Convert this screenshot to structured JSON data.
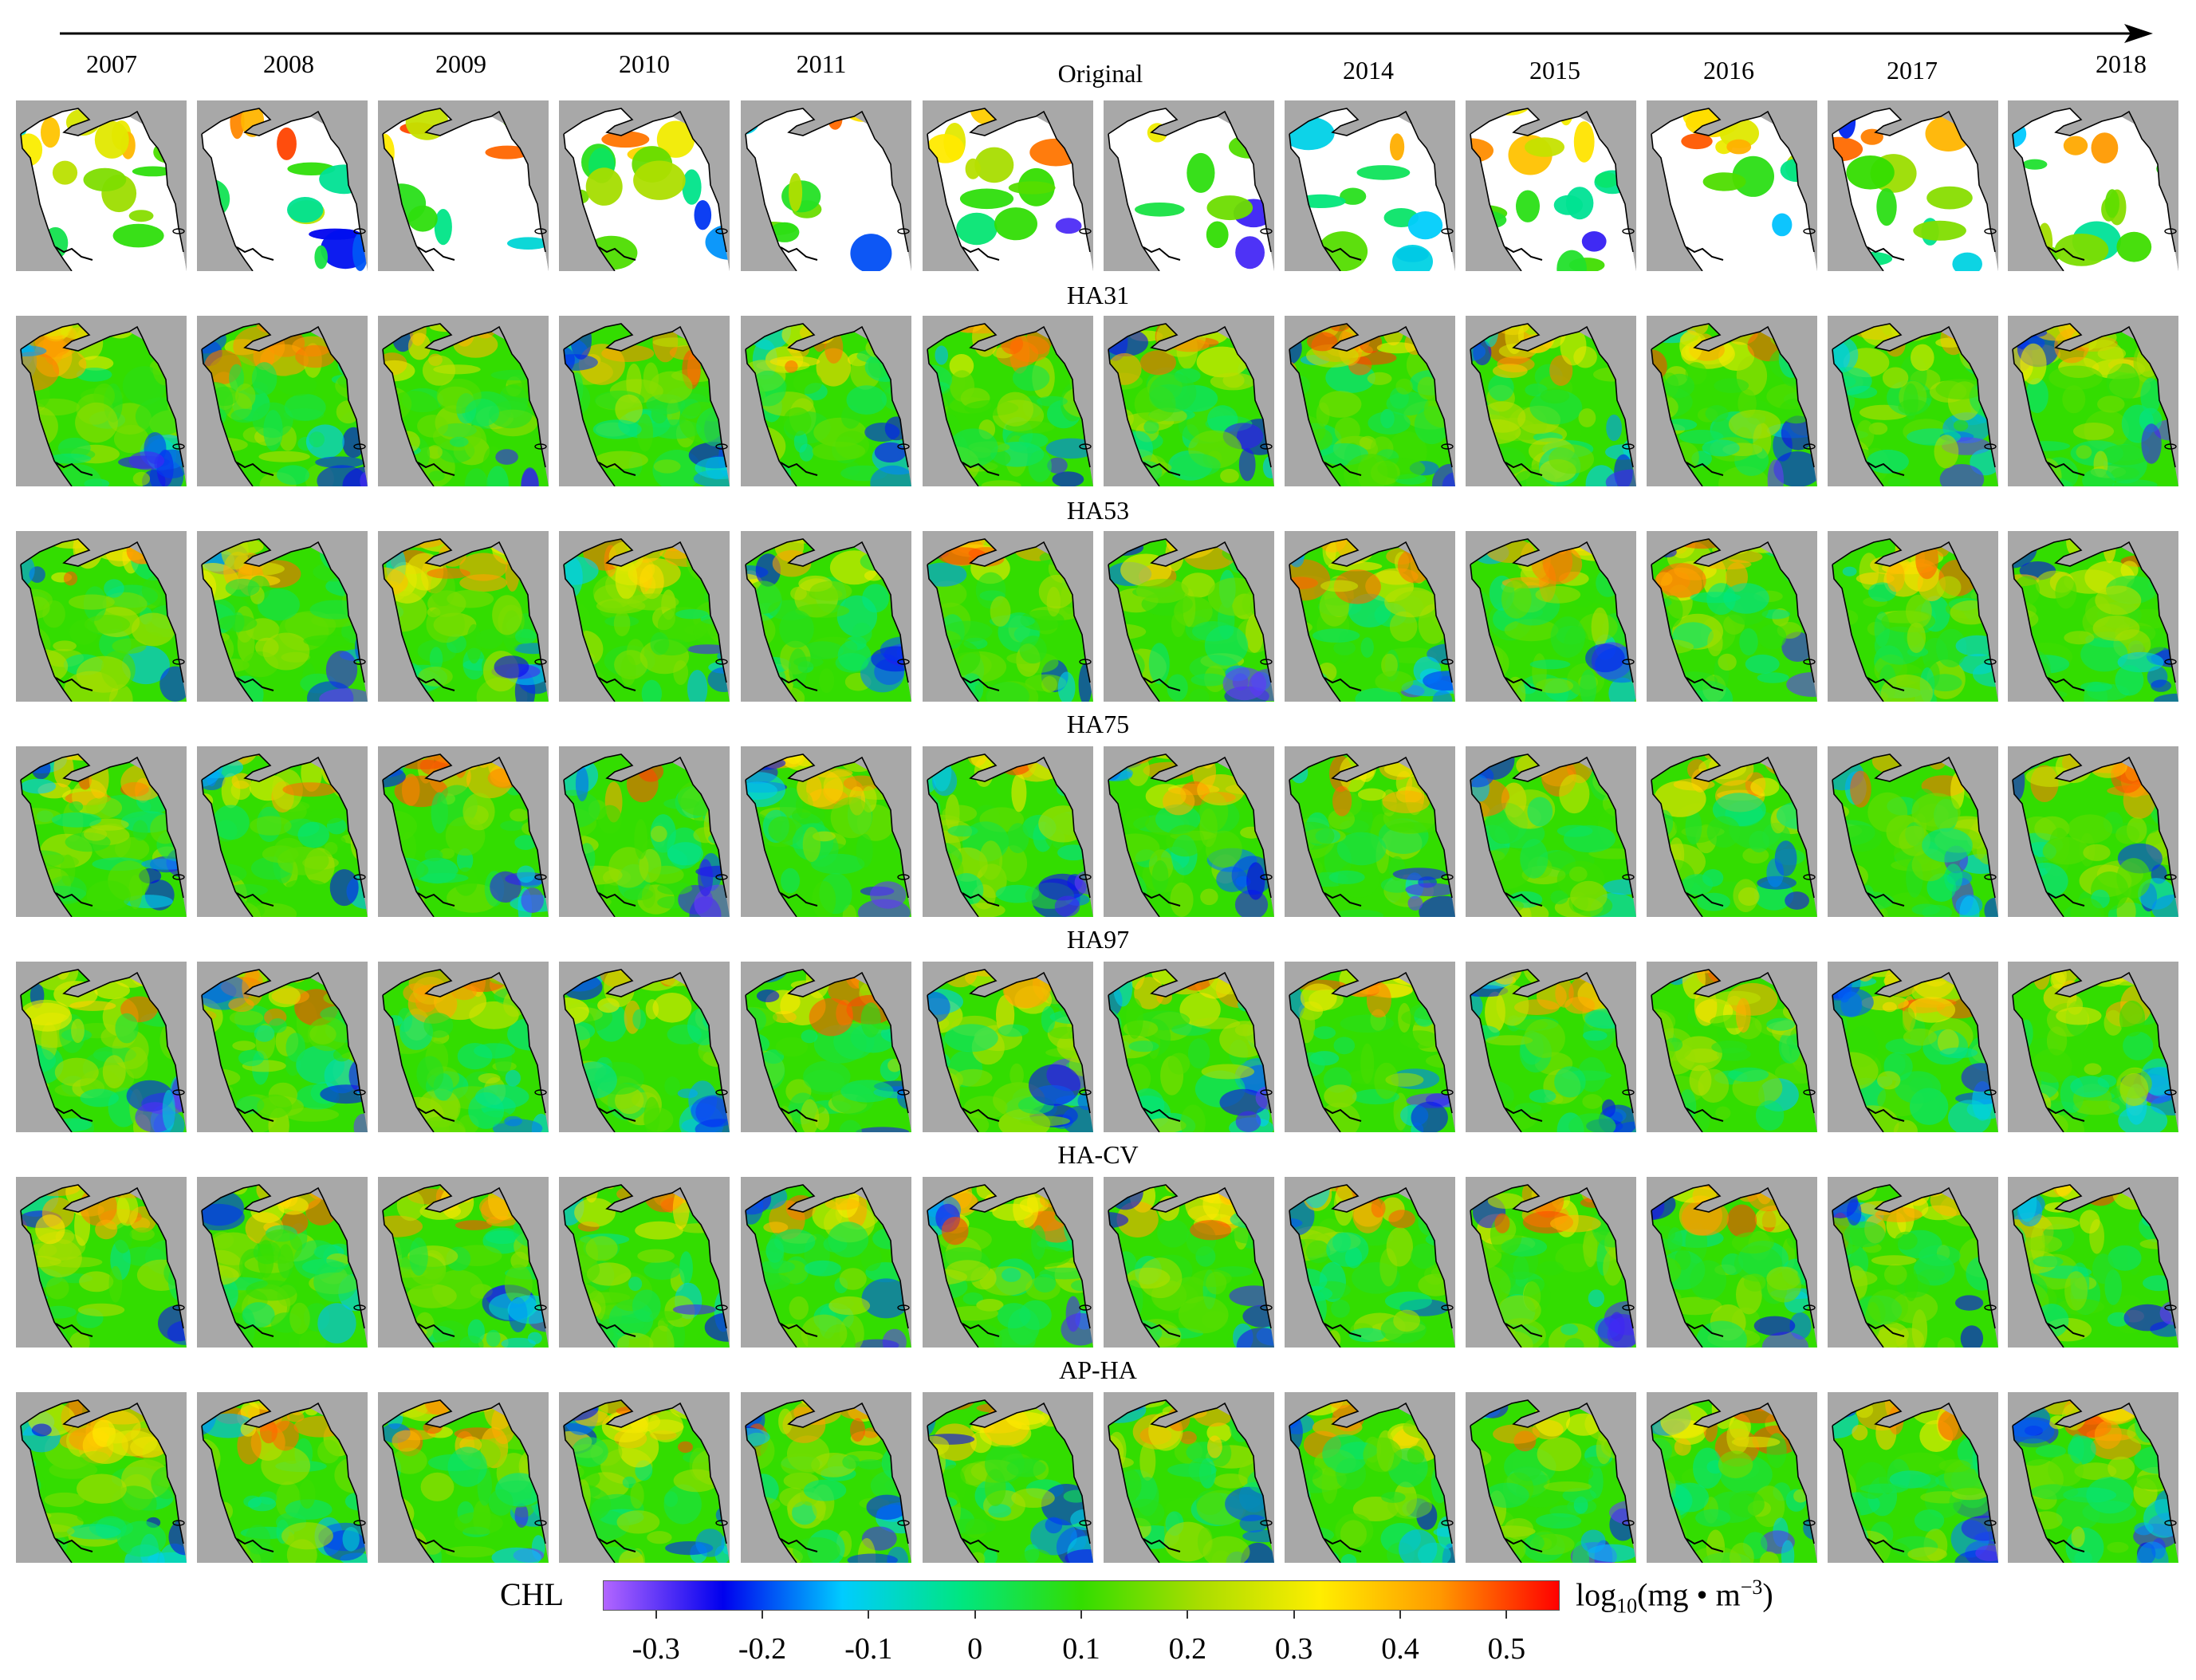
{
  "column_labels": [
    "2007",
    "2008",
    "2009",
    "2010",
    "2011",
    "Original",
    "",
    "2014",
    "2015",
    "2016",
    "2017",
    "2018"
  ],
  "rows": [
    {
      "label": "",
      "kind": "original"
    },
    {
      "label": "HA31",
      "kind": "filled"
    },
    {
      "label": "HA53",
      "kind": "filled"
    },
    {
      "label": "HA75",
      "kind": "filled"
    },
    {
      "label": "HA97",
      "kind": "filled"
    },
    {
      "label": "HA-CV",
      "kind": "filled"
    },
    {
      "label": "AP-HA",
      "kind": "filled"
    }
  ],
  "colorbar": {
    "title": "CHL",
    "units_prefix": "log",
    "units_sub": "10",
    "units_main": "(mg • m",
    "units_sup": "−3",
    "units_close": ")",
    "range": [
      -0.35,
      0.55
    ],
    "ticks": [
      "-0.3",
      "-0.2",
      "-0.1",
      "0",
      "0.1",
      "0.2",
      "0.3",
      "0.4",
      "0.5"
    ],
    "tick_values": [
      -0.3,
      -0.2,
      -0.1,
      0,
      0.1,
      0.2,
      0.3,
      0.4,
      0.5
    ],
    "colors": [
      "#b266ff",
      "#0000ee",
      "#00ccff",
      "#00e680",
      "#33dd00",
      "#aadd00",
      "#ffee00",
      "#ff9900",
      "#ff0000"
    ]
  },
  "colors": {
    "land": "#a8a8a8",
    "coast": "#000000",
    "no_data": "#ffffff"
  }
}
